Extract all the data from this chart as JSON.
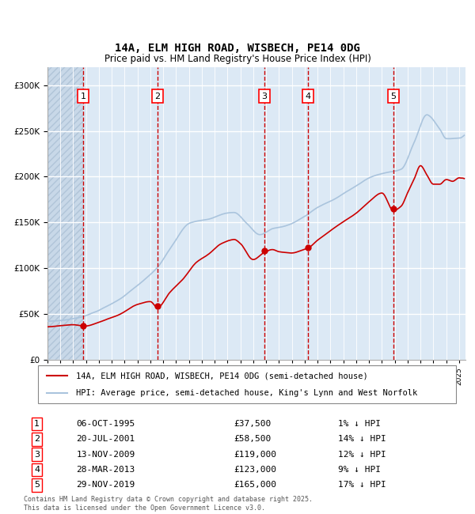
{
  "title_line1": "14A, ELM HIGH ROAD, WISBECH, PE14 0DG",
  "title_line2": "Price paid vs. HM Land Registry's House Price Index (HPI)",
  "ylabel": "£",
  "xlim_start": 1993.0,
  "xlim_end": 2025.5,
  "ylim": [
    0,
    320000
  ],
  "yticks": [
    0,
    50000,
    100000,
    150000,
    200000,
    250000,
    300000
  ],
  "ytick_labels": [
    "£0",
    "£50K",
    "£100K",
    "£150K",
    "£200K",
    "£250K",
    "£300K"
  ],
  "hpi_color": "#aac4dd",
  "price_color": "#cc0000",
  "background_plot": "#dce9f5",
  "background_hatch": "#c8d8e8",
  "grid_color": "#ffffff",
  "vline_color": "#cc0000",
  "sale_points": [
    {
      "label": "1",
      "year": 1995.77,
      "price": 37500,
      "date": "06-OCT-1995",
      "pct": "1%"
    },
    {
      "label": "2",
      "year": 2001.55,
      "price": 58500,
      "date": "20-JUL-2001",
      "pct": "14%"
    },
    {
      "label": "3",
      "year": 2009.87,
      "price": 119000,
      "date": "13-NOV-2009",
      "pct": "12%"
    },
    {
      "label": "4",
      "year": 2013.24,
      "price": 123000,
      "date": "28-MAR-2013",
      "pct": "9%"
    },
    {
      "label": "5",
      "year": 2019.91,
      "price": 165000,
      "date": "29-NOV-2019",
      "pct": "17%"
    }
  ],
  "legend_red_label": "14A, ELM HIGH ROAD, WISBECH, PE14 0DG (semi-detached house)",
  "legend_blue_label": "HPI: Average price, semi-detached house, King's Lynn and West Norfolk",
  "table_rows": [
    [
      "1",
      "06-OCT-1995",
      "£37,500",
      "1% ↓ HPI"
    ],
    [
      "2",
      "20-JUL-2001",
      "£58,500",
      "14% ↓ HPI"
    ],
    [
      "3",
      "13-NOV-2009",
      "£119,000",
      "12% ↓ HPI"
    ],
    [
      "4",
      "28-MAR-2013",
      "£123,000",
      "9% ↓ HPI"
    ],
    [
      "5",
      "29-NOV-2019",
      "£165,000",
      "17% ↓ HPI"
    ]
  ],
  "footer": "Contains HM Land Registry data © Crown copyright and database right 2025.\nThis data is licensed under the Open Government Licence v3.0."
}
